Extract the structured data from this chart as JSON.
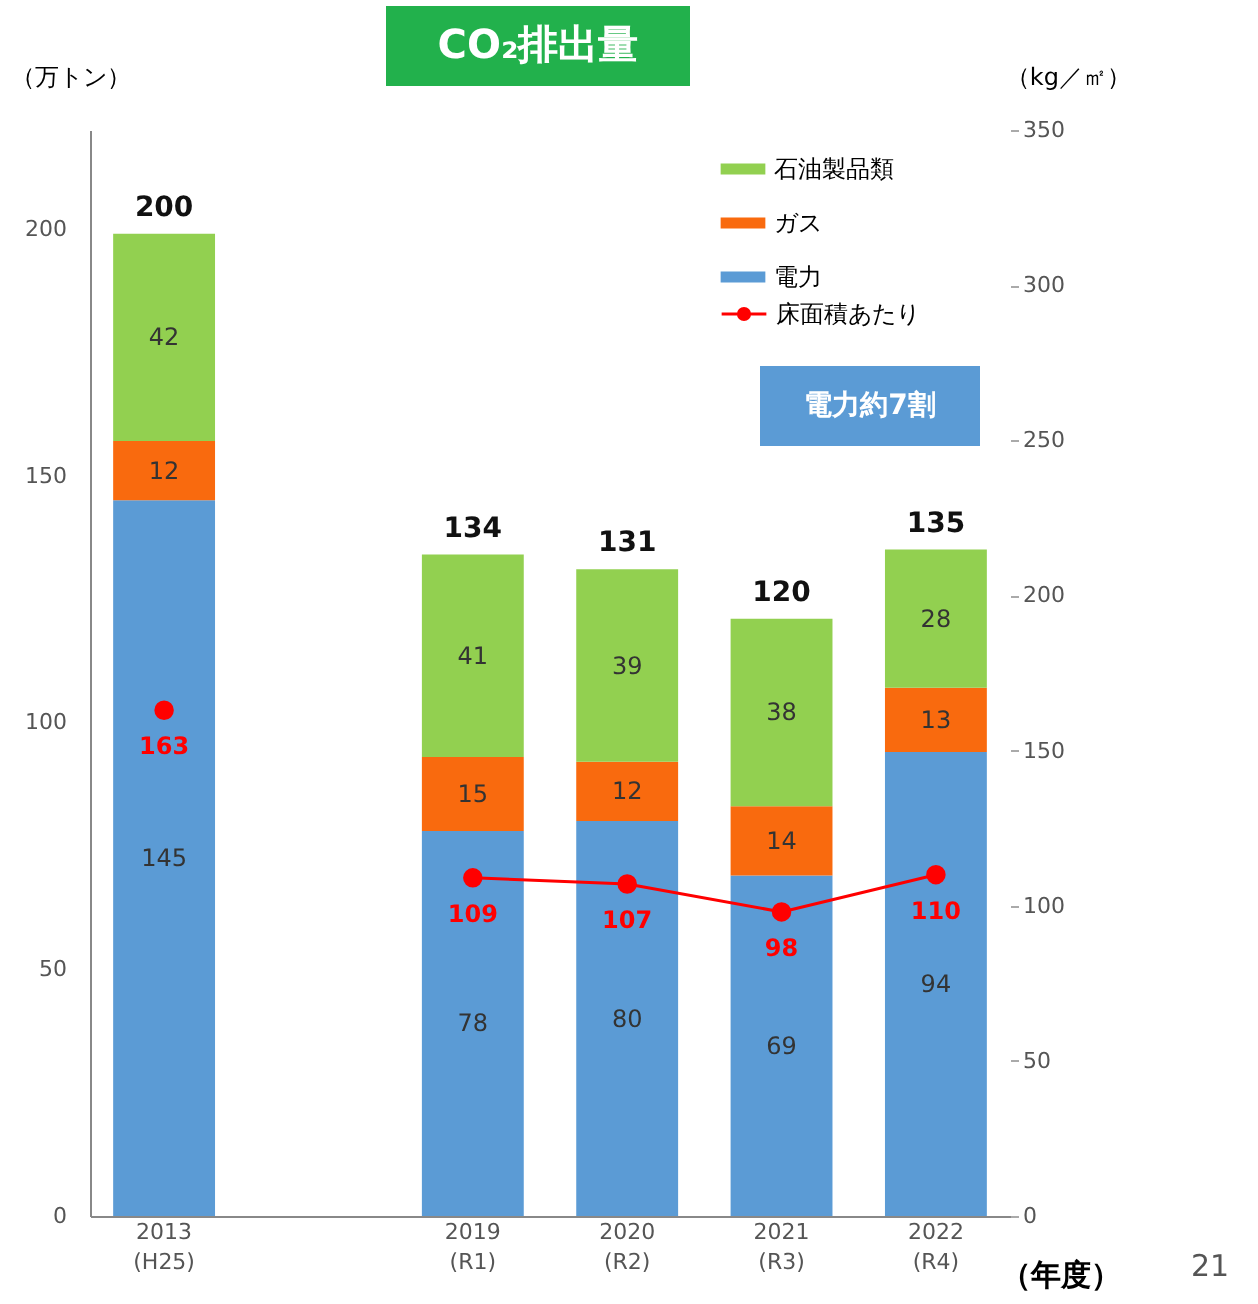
{
  "chart_data": {
    "type": "bar",
    "title": "CO₂排出量",
    "xlabel": "（年度）",
    "ylabel": "（万トン）",
    "y2label": "（kg／㎡）",
    "categories": [
      "2013\n(H25)",
      null,
      "2019\n(R1)",
      "2020\n(R2)",
      "2021\n(R3)",
      "2022\n(R4)"
    ],
    "stacked": true,
    "series": [
      {
        "name": "電力",
        "color": "#5b9bd5",
        "values": [
          145,
          null,
          78,
          80,
          69,
          94
        ]
      },
      {
        "name": "ガス",
        "color": "#f96a0e",
        "values": [
          12,
          null,
          15,
          12,
          14,
          13
        ]
      },
      {
        "name": "石油製品類",
        "color": "#92d050",
        "values": [
          42,
          null,
          41,
          39,
          38,
          28
        ]
      },
      {
        "name": "床面積あたり",
        "type": "line",
        "axis": "y2",
        "color": "#ff0000",
        "marker": "circle",
        "values": [
          163,
          null,
          109,
          107,
          98,
          110
        ]
      }
    ],
    "totals": [
      "200",
      null,
      "134",
      "131",
      "120",
      "135"
    ],
    "data_labels": true,
    "ylim": [
      0,
      220
    ],
    "yticks": [
      0,
      50,
      100,
      150,
      200
    ],
    "y2lim": [
      0,
      350
    ],
    "y2ticks": [
      0,
      50,
      100,
      150,
      200,
      250,
      300,
      350
    ],
    "legend": "top right",
    "grid": false,
    "annotations": [
      "電力約7割",
      "21"
    ]
  }
}
